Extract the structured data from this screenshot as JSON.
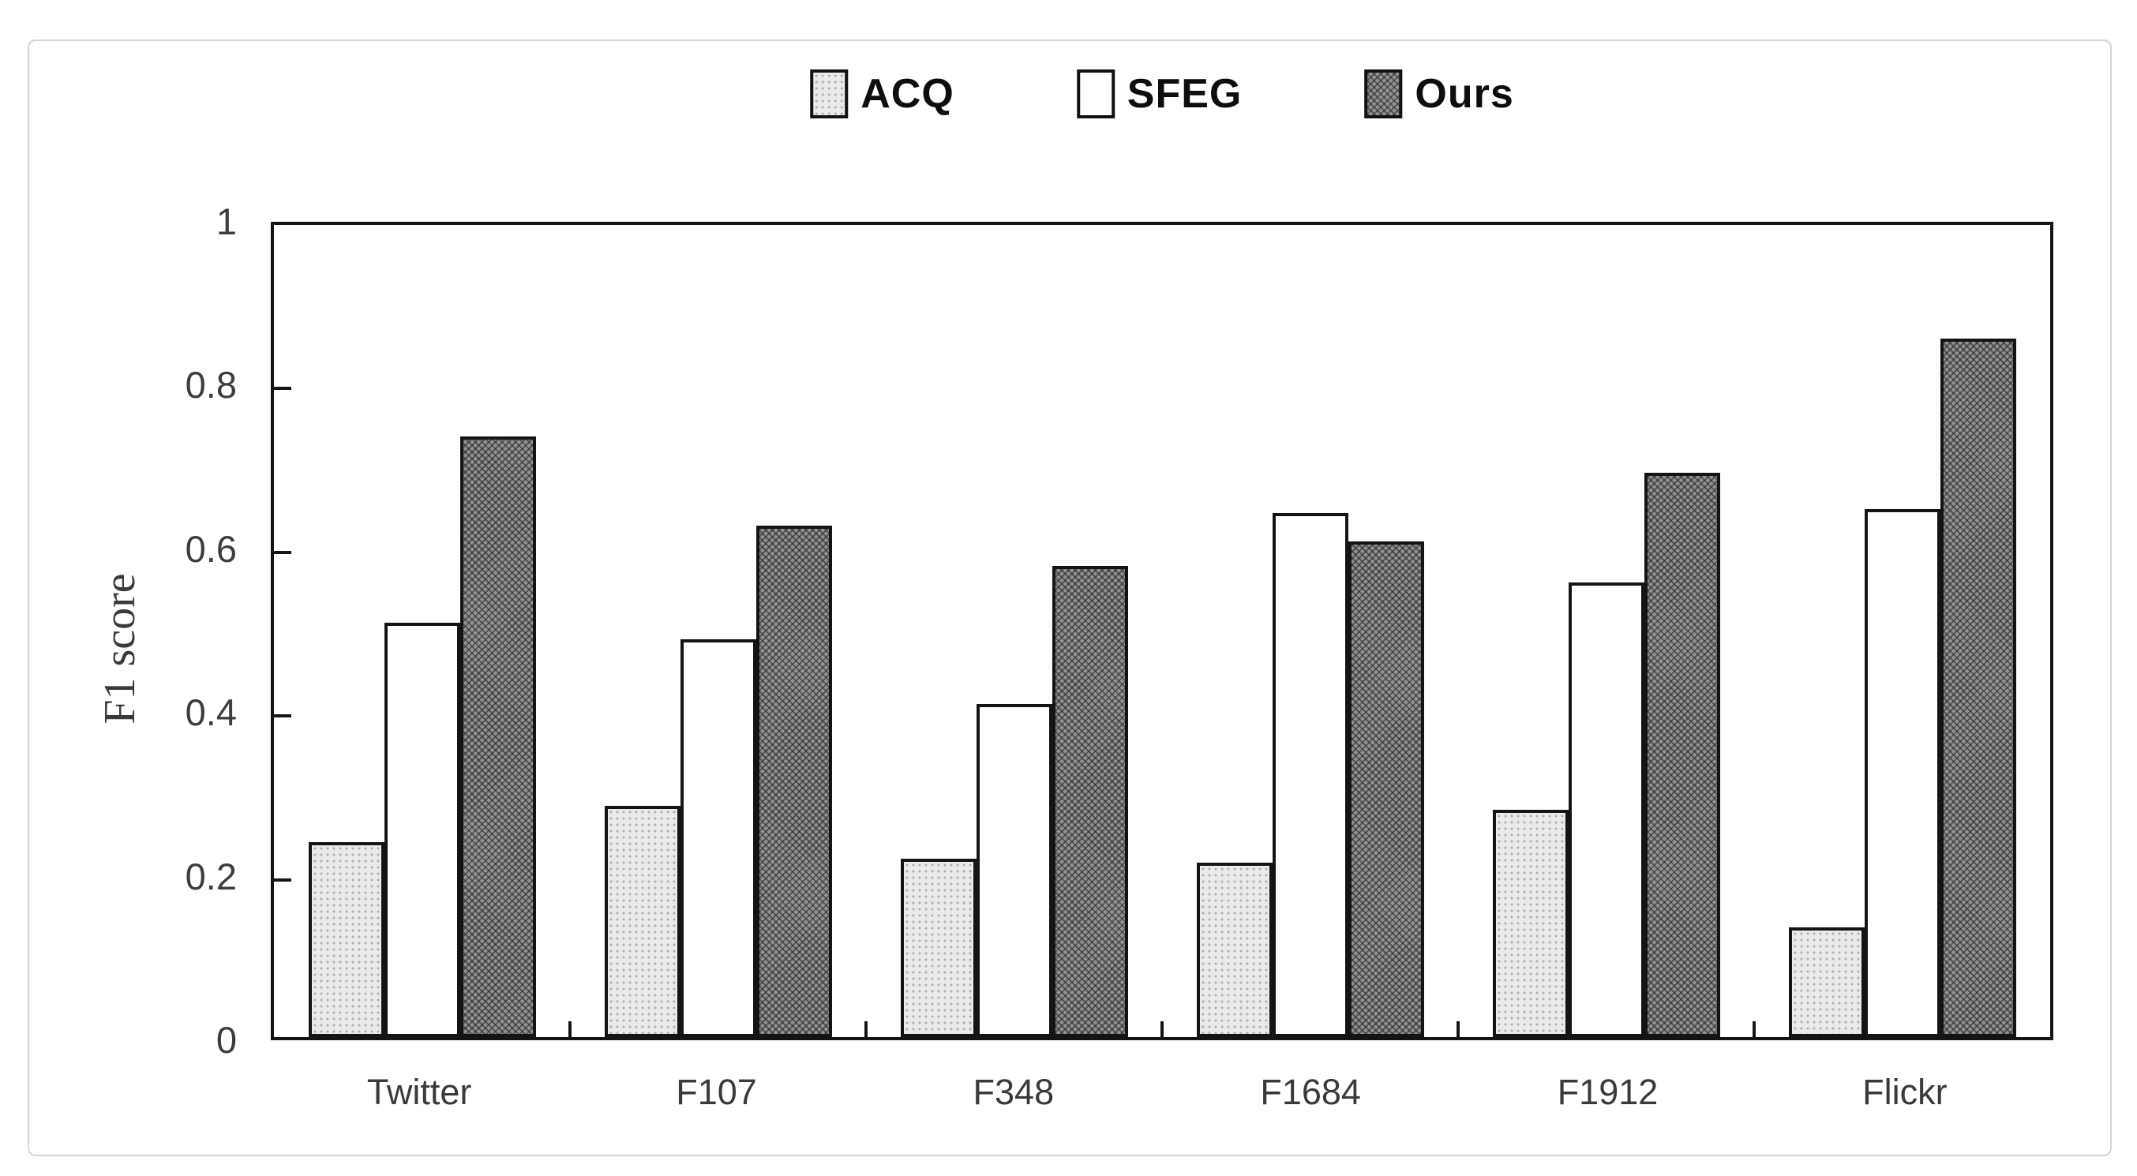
{
  "figure": {
    "background_color": "#ffffff",
    "border_color": "#d6d6d6"
  },
  "chart_data": {
    "type": "bar",
    "title": "",
    "ylabel": "F1 score",
    "xlabel": "",
    "categories": [
      "Twitter",
      "F107",
      "F348",
      "F1684",
      "F1912",
      "Flickr"
    ],
    "series": [
      {
        "name": "ACQ",
        "pattern": "dots",
        "fill": "#eaeaea",
        "values": [
          0.24,
          0.285,
          0.22,
          0.215,
          0.28,
          0.135
        ]
      },
      {
        "name": "SFEG",
        "pattern": "none",
        "fill": "#ffffff",
        "values": [
          0.51,
          0.49,
          0.41,
          0.645,
          0.56,
          0.65
        ]
      },
      {
        "name": "Ours",
        "pattern": "crosshatch",
        "fill": "#7b7b7b",
        "values": [
          0.74,
          0.63,
          0.58,
          0.61,
          0.695,
          0.86
        ]
      }
    ],
    "ylim": [
      0,
      1
    ],
    "ytick_labels": [
      "0",
      "0.2",
      "0.4",
      "0.6",
      "0.8",
      "1"
    ],
    "grid": false,
    "legend_position": "top-center",
    "axis_color": "#141414",
    "bar_border_color": "#141414",
    "tick_label_color": "#3d3d3d",
    "legend_text_color": "#0d0d0d"
  }
}
